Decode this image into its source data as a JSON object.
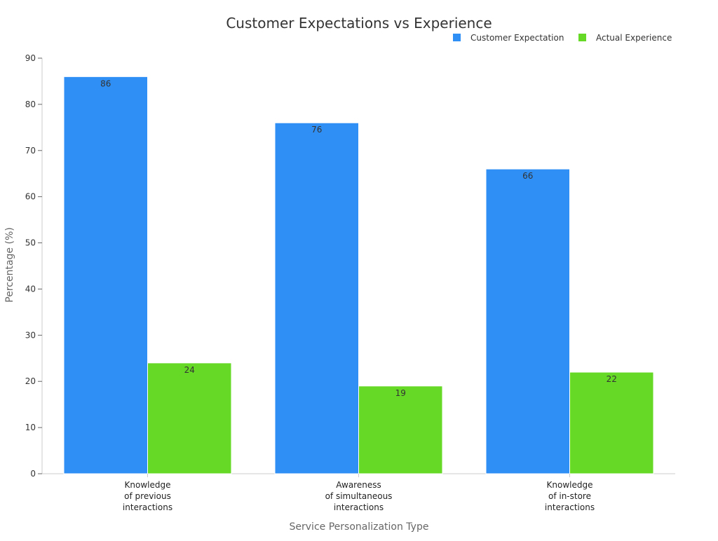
{
  "chart_data": {
    "type": "bar",
    "title": "Customer Expectations vs Experience",
    "xlabel": "Service Personalization Type",
    "ylabel": "Percentage (%)",
    "ylim": [
      0,
      90
    ],
    "yticks": [
      0,
      10,
      20,
      30,
      40,
      50,
      60,
      70,
      80,
      90
    ],
    "grid": false,
    "legend_position": "top-right",
    "categories": [
      [
        "Knowledge",
        "of previous",
        "interactions"
      ],
      [
        "Awareness",
        "of simultaneous",
        "interactions"
      ],
      [
        "Knowledge",
        "of in-store",
        "interactions"
      ]
    ],
    "series": [
      {
        "name": "Customer Expectation",
        "color": "#2f8ff5",
        "values": [
          86,
          76,
          66
        ]
      },
      {
        "name": "Actual Experience",
        "color": "#66d926",
        "values": [
          24,
          19,
          22
        ]
      }
    ]
  }
}
